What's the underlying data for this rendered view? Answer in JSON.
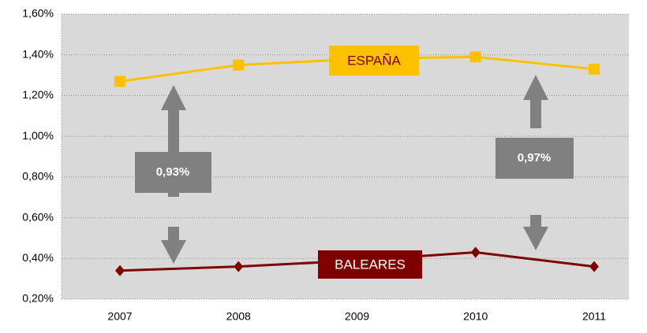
{
  "chart_data": {
    "type": "line",
    "categories": [
      "2007",
      "2008",
      "2009",
      "2010",
      "2011"
    ],
    "series": [
      {
        "name": "ESPAÑA",
        "color": "#ffc000",
        "values": [
          1.27,
          1.35,
          1.38,
          1.39,
          1.33
        ]
      },
      {
        "name": "BALEARES",
        "color": "#7f0000",
        "values": [
          0.34,
          0.36,
          0.39,
          0.43,
          0.36
        ]
      }
    ],
    "annotations": [
      "0,93%",
      "0,97%"
    ],
    "ylim": [
      0.2,
      1.6
    ],
    "yticks": [
      {
        "value": 0.2,
        "label": "0,20%"
      },
      {
        "value": 0.4,
        "label": "0,40%"
      },
      {
        "value": 0.6,
        "label": "0,60%"
      },
      {
        "value": 0.8,
        "label": "0,80%"
      },
      {
        "value": 1.0,
        "label": "1,00%"
      },
      {
        "value": 1.2,
        "label": "1,20%"
      },
      {
        "value": 1.4,
        "label": "1,40%"
      },
      {
        "value": 1.6,
        "label": "1,60%"
      }
    ],
    "grid": true
  }
}
